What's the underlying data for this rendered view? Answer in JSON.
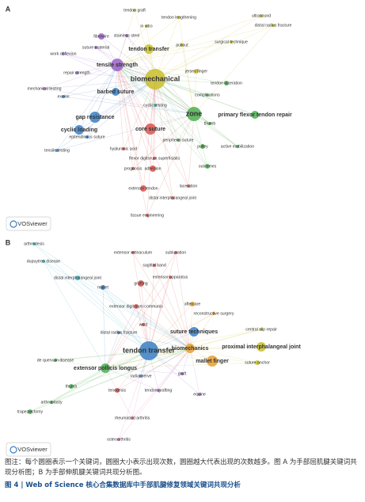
{
  "panels": [
    {
      "label": "A",
      "badge": "VOSviewer",
      "nodes": [
        {
          "label": "tendon graft"
        },
        {
          "label": "tendon lengthening"
        },
        {
          "label": "ultrasound"
        },
        {
          "label": "distal radius fracture"
        },
        {
          "label": "in vitro"
        },
        {
          "label": "stainless steel"
        },
        {
          "label": "fiberwire"
        },
        {
          "label": "suture material"
        },
        {
          "label": "tendon transfer"
        },
        {
          "label": "pullout"
        },
        {
          "label": "surgical technique"
        },
        {
          "label": "work of flexion"
        },
        {
          "label": "tensile strength"
        },
        {
          "label": "jersey finger"
        },
        {
          "label": "repair strength"
        },
        {
          "label": "biomechanical"
        },
        {
          "label": "tendon laceration"
        },
        {
          "label": "mechanical testing"
        },
        {
          "label": "barbed suture"
        },
        {
          "label": "exvion"
        },
        {
          "label": "complications"
        },
        {
          "label": "cyclic testing"
        },
        {
          "label": "gap resistance"
        },
        {
          "label": "zone"
        },
        {
          "label": "primary flexor tendon repair"
        },
        {
          "label": "thumb"
        },
        {
          "label": "cyclic loading"
        },
        {
          "label": "core suture"
        },
        {
          "label": "epitendinous suture"
        },
        {
          "label": "peripheral suture"
        },
        {
          "label": "hyaluronic acid"
        },
        {
          "label": "active mobilization"
        },
        {
          "label": "pulley"
        },
        {
          "label": "tensile testing"
        },
        {
          "label": "flexor digitorum superficialis"
        },
        {
          "label": "outcomes"
        },
        {
          "label": "adhesion"
        },
        {
          "label": "prognosis"
        },
        {
          "label": "extensor tendon"
        },
        {
          "label": "laceration"
        },
        {
          "label": "distal interphalangeal joint"
        },
        {
          "label": "tissue engineering"
        }
      ]
    },
    {
      "label": "B",
      "badge": "VOSviewer",
      "nodes": [
        {
          "label": "arthrodesis"
        },
        {
          "label": "dupuytren disease"
        },
        {
          "label": "extensor retinaculum"
        },
        {
          "label": "subluxation"
        },
        {
          "label": "sagittal band"
        },
        {
          "label": "extensor apparatus"
        },
        {
          "label": "distal interphalangeal joint"
        },
        {
          "label": "mallet"
        },
        {
          "label": "grafting"
        },
        {
          "label": "extensor digitorum communis"
        },
        {
          "label": "aftercare"
        },
        {
          "label": "reconstructive surgery"
        },
        {
          "label": "wrist"
        },
        {
          "label": "distal radius fracture"
        },
        {
          "label": "suture techniques"
        },
        {
          "label": "central slip repair"
        },
        {
          "label": "proximal interphalangeal joint"
        },
        {
          "label": "biomechanics"
        },
        {
          "label": "tendon transfer"
        },
        {
          "label": "suture anchor"
        },
        {
          "label": "mallet finger"
        },
        {
          "label": "de quervain disease"
        },
        {
          "label": "extensor pollicis longus"
        },
        {
          "label": "graft"
        },
        {
          "label": "radial nerve"
        },
        {
          "label": "thumb"
        },
        {
          "label": "tenodesis"
        },
        {
          "label": "tendon grafting"
        },
        {
          "label": "equine"
        },
        {
          "label": "arthroplasty"
        },
        {
          "label": "trapeziectomy"
        },
        {
          "label": "rheumatoid arthritis"
        },
        {
          "label": "osteoarthritis"
        }
      ]
    }
  ],
  "caption": {
    "note": "图注：每个圆圈表示一个关键词，圆圈大小表示出现次数，圆圈越大代表出现的次数越多。图 A 为手部屈肌腱关键词共现分析图；B 为手部伸肌腱关键词共现分析图。",
    "title": "图 4 | Web of Science 核心合集数据库中手部肌腱修复领域关键词共现分析"
  }
}
